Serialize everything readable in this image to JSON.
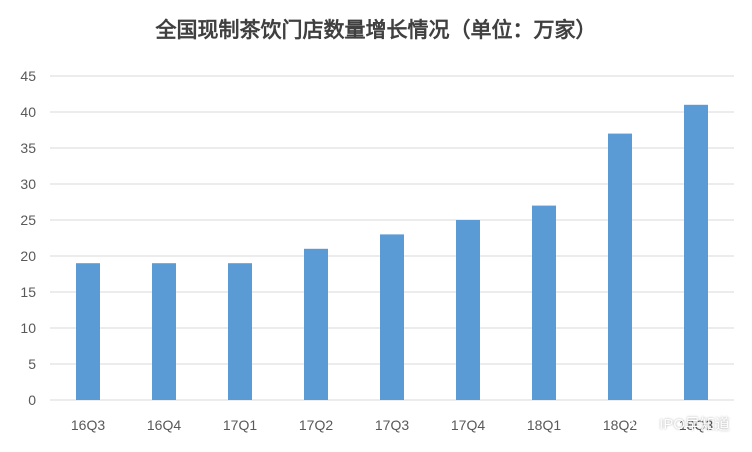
{
  "chart_data": {
    "type": "bar",
    "title": "全国现制茶饮门店数量增长情况（单位：万家）",
    "categories": [
      "16Q3",
      "16Q4",
      "17Q1",
      "17Q2",
      "17Q3",
      "17Q4",
      "18Q1",
      "18Q2",
      "18Q3"
    ],
    "values": [
      19,
      19,
      19,
      21,
      23,
      25,
      27,
      37,
      41
    ],
    "ylim": [
      0,
      45
    ],
    "yticks": [
      0,
      5,
      10,
      15,
      20,
      25,
      30,
      35,
      40,
      45
    ],
    "xlabel": "",
    "ylabel": "",
    "grid": true,
    "legend": "none",
    "bar_color": "#5B9BD5",
    "grid_color": "#d9d9d9"
  },
  "watermark": {
    "text": "IPO早知道",
    "icon": "wechat-icon"
  }
}
